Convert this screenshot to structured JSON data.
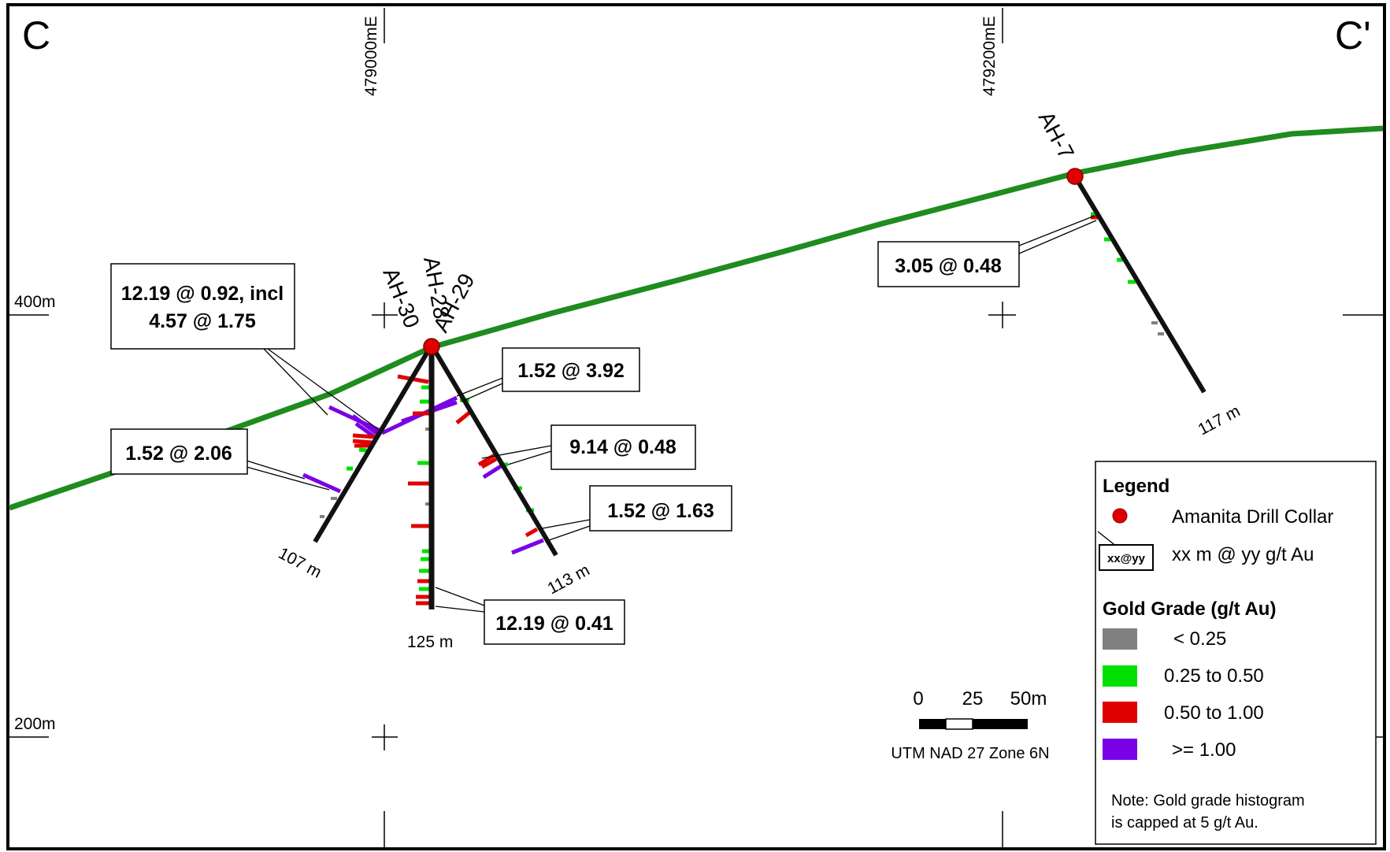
{
  "section_ends": {
    "left": "C",
    "right": "C'"
  },
  "eastings": [
    "479000mE",
    "479200mE"
  ],
  "elevations": [
    "400m",
    "200m"
  ],
  "holes": [
    {
      "id": "AH-30",
      "depth": "107 m"
    },
    {
      "id": "AH-28",
      "depth": "125 m"
    },
    {
      "id": "AH-29",
      "depth": "113 m"
    },
    {
      "id": "AH-7",
      "depth": "117 m"
    }
  ],
  "intercepts": [
    {
      "text": "12.19 @ 0.92, incl",
      "text2": "4.57 @ 1.75"
    },
    {
      "text": "1.52 @ 2.06"
    },
    {
      "text": "1.52 @ 3.92"
    },
    {
      "text": "9.14 @ 0.48"
    },
    {
      "text": "1.52 @ 1.63"
    },
    {
      "text": "12.19 @ 0.41"
    },
    {
      "text": "3.05 @ 0.48"
    }
  ],
  "scale_bar": {
    "labels": [
      "0",
      "25",
      "50m"
    ],
    "projection": "UTM NAD 27 Zone 6N"
  },
  "legend": {
    "title": "Legend",
    "collar_label": "Amanita Drill Collar",
    "callout_sample": "xx@yy",
    "callout_label": "xx m @ yy g/t Au",
    "grade_title": "Gold Grade (g/t Au)",
    "grades": [
      {
        "label": "< 0.25",
        "color": "#808080"
      },
      {
        "label": "0.25 to 0.50",
        "color": "#00e000"
      },
      {
        "label": "0.50 to 1.00",
        "color": "#e00000"
      },
      {
        "label": ">= 1.00",
        "color": "#7a00e6"
      }
    ],
    "note_line1": "Note: Gold grade histogram",
    "note_line2": "is capped at 5 g/t Au."
  },
  "colors": {
    "topography": "#1e8c1e",
    "collar": "#e00000",
    "trace": "#111111",
    "grade_low": "#808080",
    "grade_mid": "#00e000",
    "grade_high": "#e00000",
    "grade_vhigh": "#7a00e6"
  }
}
